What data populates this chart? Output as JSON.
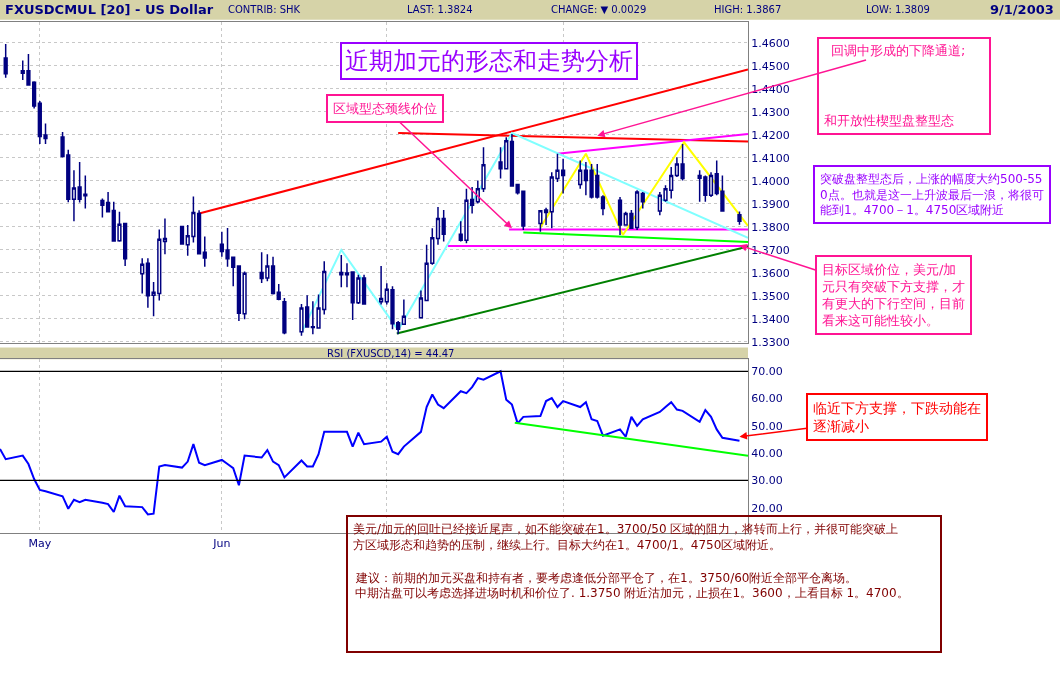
{
  "chart_data": [
    {
      "type": "candlestick",
      "title": "近期加元的形态和走势分析",
      "annotations": [
        "FXUSDCMUL [20] - US Dollar",
        "CONTRIB: SHK",
        "LAST: 1.3824",
        "CHANGE: ▼ 0.0029",
        "HIGH: 1.3867",
        "LOW: 1.3809",
        "9/1/2003",
        {
          "text": "区域型态颈线价位",
          "x": "2003-07-23",
          "y": 1.3794
        },
        {
          "text": "回调中形成的下降通道;",
          "x": "2003-08-07",
          "y": 1.4197
        },
        "和开放性楔型盘整型态",
        "突破盘整型态后，上涨的幅度大约500-550点。也就是这一上升波最后一浪，将很可能到1。4700－1。4750区域附近",
        {
          "text": "目标区域价位，美元/加元只有突破下方支撑，才有更大的下行空间，目前看来这可能性较小。",
          "x": "2003-09-01",
          "y": 1.372
        }
      ],
      "x": [
        "2003-04-25",
        "2003-04-28",
        "2003-04-29",
        "2003-04-30",
        "2003-05-01",
        "2003-05-02",
        "2003-05-05",
        "2003-05-06",
        "2003-05-07",
        "2003-05-08",
        "2003-05-09",
        "2003-05-12",
        "2003-05-13",
        "2003-05-14",
        "2003-05-15",
        "2003-05-16",
        "2003-05-19",
        "2003-05-20",
        "2003-05-21",
        "2003-05-22",
        "2003-05-23",
        "2003-05-26",
        "2003-05-27",
        "2003-05-28",
        "2003-05-29",
        "2003-05-30",
        "2003-06-02",
        "2003-06-03",
        "2003-06-04",
        "2003-06-05",
        "2003-06-06",
        "2003-06-09",
        "2003-06-10",
        "2003-06-11",
        "2003-06-12",
        "2003-06-13",
        "2003-06-16",
        "2003-06-17",
        "2003-06-18",
        "2003-06-19",
        "2003-06-20",
        "2003-06-23",
        "2003-06-24",
        "2003-06-25",
        "2003-06-26",
        "2003-06-27",
        "2003-06-30",
        "2003-07-01",
        "2003-07-02",
        "2003-07-03",
        "2003-07-04",
        "2003-07-07",
        "2003-07-08",
        "2003-07-09",
        "2003-07-10",
        "2003-07-11",
        "2003-07-14",
        "2003-07-15",
        "2003-07-16",
        "2003-07-17",
        "2003-07-18",
        "2003-07-21",
        "2003-07-22",
        "2003-07-23",
        "2003-07-24",
        "2003-07-25",
        "2003-07-28",
        "2003-07-29",
        "2003-07-30",
        "2003-07-31",
        "2003-08-01",
        "2003-08-04",
        "2003-08-05",
        "2003-08-06",
        "2003-08-07",
        "2003-08-08",
        "2003-08-11",
        "2003-08-12",
        "2003-08-13",
        "2003-08-14",
        "2003-08-15",
        "2003-08-18",
        "2003-08-19",
        "2003-08-20",
        "2003-08-21",
        "2003-08-22",
        "2003-08-25",
        "2003-08-26",
        "2003-08-27",
        "2003-08-28",
        "2003-08-29",
        "2003-09-01"
      ],
      "ohlc": [
        [
          1.4535,
          1.4596,
          1.4449,
          1.4466
        ],
        [
          1.4468,
          1.4524,
          1.4439,
          1.4479
        ],
        [
          1.4479,
          1.4552,
          1.4417,
          1.4417
        ],
        [
          1.4429,
          1.4434,
          1.4315,
          1.4326
        ],
        [
          1.4338,
          1.4348,
          1.4161,
          1.4193
        ],
        [
          1.42,
          1.425,
          1.4161,
          1.4185
        ],
        [
          1.4191,
          1.4213,
          1.4102,
          1.4106
        ],
        [
          1.4113,
          1.4136,
          1.3907,
          1.392
        ],
        [
          1.392,
          1.4046,
          1.3825,
          1.3969
        ],
        [
          1.3974,
          1.4082,
          1.3906,
          1.392
        ],
        [
          1.3942,
          1.4024,
          1.388,
          1.3935
        ],
        [
          1.3915,
          1.3923,
          1.3841,
          1.3894
        ],
        [
          1.3906,
          1.3952,
          1.3863,
          1.3866
        ],
        [
          1.3871,
          1.3909,
          1.3735,
          1.3739
        ],
        [
          1.374,
          1.3866,
          1.3735,
          1.3811
        ],
        [
          1.3815,
          1.3815,
          1.363,
          1.3661
        ],
        [
          1.3596,
          1.3664,
          1.351,
          1.3637
        ],
        [
          1.3642,
          1.3664,
          1.3448,
          1.3501
        ],
        [
          1.3503,
          1.356,
          1.3411,
          1.3516
        ],
        [
          1.351,
          1.3789,
          1.348,
          1.3746
        ],
        [
          1.3736,
          1.3837,
          1.3681,
          1.3749
        ],
        [
          1.3802,
          1.3805,
          1.3725,
          1.3726
        ],
        [
          1.3722,
          1.3808,
          1.3674,
          1.3762
        ],
        [
          1.3758,
          1.3932,
          1.3732,
          1.3863
        ],
        [
          1.3858,
          1.3872,
          1.3683,
          1.3683
        ],
        [
          1.369,
          1.3758,
          1.3627,
          1.3665
        ],
        [
          1.3725,
          1.3779,
          1.367,
          1.3693
        ],
        [
          1.37,
          1.3795,
          1.3627,
          1.3661
        ],
        [
          1.3668,
          1.3668,
          1.3542,
          1.3624
        ],
        [
          1.363,
          1.363,
          1.3391,
          1.3424
        ],
        [
          1.3422,
          1.3606,
          1.3398,
          1.3598
        ],
        [
          1.3602,
          1.369,
          1.3556,
          1.3576
        ],
        [
          1.3578,
          1.3681,
          1.3563,
          1.363
        ],
        [
          1.363,
          1.367,
          1.3506,
          1.351
        ],
        [
          1.3516,
          1.3552,
          1.3481,
          1.3485
        ],
        [
          1.3474,
          1.3491,
          1.3333,
          1.3339
        ],
        [
          1.3344,
          1.3465,
          1.3326,
          1.3447
        ],
        [
          1.3452,
          1.3503,
          1.3365,
          1.3365
        ],
        [
          1.3366,
          1.3477,
          1.3333,
          1.3362
        ],
        [
          1.336,
          1.3506,
          1.3357,
          1.3447
        ],
        [
          1.3441,
          1.365,
          1.3419,
          1.3606
        ],
        [
          1.3602,
          1.3678,
          1.3537,
          1.3592
        ],
        [
          1.3599,
          1.3642,
          1.3537,
          1.3592
        ],
        [
          1.3604,
          1.3606,
          1.3395,
          1.347
        ],
        [
          1.347,
          1.3592,
          1.3465,
          1.3578
        ],
        [
          1.3578,
          1.3592,
          1.3462,
          1.3465
        ],
        [
          1.3474,
          1.363,
          1.3462,
          1.3488
        ],
        [
          1.3474,
          1.3555,
          1.3462,
          1.3529
        ],
        [
          1.3527,
          1.3542,
          1.3355,
          1.3379
        ],
        [
          1.3383,
          1.3391,
          1.3333,
          1.3355
        ],
        [
          1.3376,
          1.3484,
          1.3376,
          1.3411
        ],
        [
          1.3405,
          1.3523,
          1.3405,
          1.3491
        ],
        [
          1.348,
          1.3722,
          1.3477,
          1.3642
        ],
        [
          1.3642,
          1.3794,
          1.3635,
          1.3753
        ],
        [
          1.375,
          1.3887,
          1.3722,
          1.3837
        ],
        [
          1.3837,
          1.3873,
          1.3736,
          1.3768
        ],
        [
          1.3768,
          1.3825,
          1.3736,
          1.3742
        ],
        [
          1.3742,
          1.3966,
          1.3729,
          1.3916
        ],
        [
          1.3919,
          1.3974,
          1.3858,
          1.3894
        ],
        [
          1.3909,
          1.4002,
          1.3902,
          1.3966
        ],
        [
          1.3966,
          1.4146,
          1.3952,
          1.407
        ],
        [
          1.4082,
          1.4146,
          1.401,
          1.4053
        ],
        [
          1.4053,
          1.419,
          1.4053,
          1.4175
        ],
        [
          1.4171,
          1.4204,
          1.3978,
          1.3978
        ],
        [
          1.3984,
          1.3984,
          1.3941,
          1.3948
        ],
        [
          1.3955,
          1.3955,
          1.3786,
          1.3804
        ],
        [
          1.3815,
          1.3873,
          1.3779,
          1.387
        ],
        [
          1.3863,
          1.3883,
          1.3808,
          1.3873
        ],
        [
          1.3866,
          1.4038,
          1.3794,
          1.4017
        ],
        [
          1.401,
          1.4118,
          1.3995,
          1.4046
        ],
        [
          1.4046,
          1.4096,
          1.3945,
          1.4024
        ],
        [
          1.3984,
          1.4089,
          1.3966,
          1.4046
        ],
        [
          1.4046,
          1.4082,
          1.3938,
          1.4002
        ],
        [
          1.4046,
          1.4074,
          1.3923,
          1.393
        ],
        [
          1.4024,
          1.4074,
          1.3923,
          1.393
        ],
        [
          1.393,
          1.3938,
          1.3851,
          1.388
        ],
        [
          1.3916,
          1.393,
          1.3765,
          1.3808
        ],
        [
          1.3808,
          1.3866,
          1.3808,
          1.3858
        ],
        [
          1.3858,
          1.3873,
          1.3794,
          1.3794
        ],
        [
          1.3797,
          1.3959,
          1.3786,
          1.3952
        ],
        [
          1.3945,
          1.3952,
          1.388,
          1.3909
        ],
        [
          1.3869,
          1.3952,
          1.3851,
          1.3938
        ],
        [
          1.3916,
          1.3981,
          1.3909,
          1.3966
        ],
        [
          1.3959,
          1.406,
          1.3923,
          1.4024
        ],
        [
          1.4024,
          1.4103,
          1.4017,
          1.4074
        ],
        [
          1.4074,
          1.4161,
          1.4002,
          1.401
        ],
        [
          1.4024,
          1.4046,
          1.3909,
          1.4012
        ],
        [
          1.4017,
          1.4024,
          1.3909,
          1.3938
        ],
        [
          1.3938,
          1.4038,
          1.393,
          1.4024
        ],
        [
          1.4031,
          1.4089,
          1.3938,
          1.3945
        ],
        [
          1.3955,
          1.4024,
          1.3866,
          1.3869
        ],
        [
          1.3853,
          1.3867,
          1.3809,
          1.3824
        ]
      ],
      "series": [
        {
          "type": "line",
          "color": "#ff0000",
          "x": [
            "2003-05-29",
            "2003-09-02T12:00"
          ],
          "values": [
            1.3858,
            1.4485
          ]
        },
        {
          "type": "line",
          "color": "#ff0000",
          "x": [
            "2003-07-03",
            "2003-09-02T12:00"
          ],
          "values": [
            1.4208,
            1.4171
          ]
        },
        {
          "type": "line",
          "color": "#ff00ff",
          "x": [
            "2003-07-31",
            "2003-09-02T12:00"
          ],
          "values": [
            1.4118,
            1.4204
          ]
        },
        {
          "type": "line",
          "color": "#ff00ff",
          "x": [
            "2003-07-22T12:00",
            "2003-09-02T12:00"
          ],
          "values": [
            1.3789,
            1.3789
          ]
        },
        {
          "type": "line",
          "color": "#ff00ff",
          "x": [
            "2003-07-11T18:00",
            "2003-09-02T12:00"
          ],
          "values": [
            1.3717,
            1.3717
          ]
        },
        {
          "type": "line",
          "color": "#00ff00",
          "x": [
            "2003-07-25",
            "2003-09-02T12:00"
          ],
          "values": [
            1.3776,
            1.3734
          ]
        },
        {
          "type": "line",
          "color": "#008000",
          "x": [
            "2003-07-02T18:00",
            "2003-09-02T12:00"
          ],
          "values": [
            1.3336,
            1.3715
          ]
        },
        {
          "type": "line",
          "color": "#80ffff",
          "x": [
            "2003-06-16",
            "2003-06-23",
            "2003-07-03",
            "2003-07-23",
            "2003-09-02T12:00"
          ],
          "values": [
            1.334,
            1.37,
            1.3351,
            1.4208,
            1.3752
          ]
        },
        {
          "type": "line",
          "color": "#ffff00",
          "x": [
            "2003-07-28",
            "2003-08-05",
            "2003-08-11T12:00",
            "2003-08-22T06:00",
            "2003-09-02T12:00"
          ],
          "values": [
            1.3797,
            1.4118,
            1.3765,
            1.4168,
            1.3804
          ]
        }
      ],
      "xlim": [
        "2003-04-24",
        "2003-09-02T12:00"
      ],
      "xticks": [
        {
          "value": "2003-05-01",
          "label": null
        },
        {
          "value": "2003-06-02",
          "label": null
        },
        {
          "value": "2003-07-01",
          "label": null
        },
        {
          "value": "2003-08-01",
          "label": null
        }
      ],
      "ylim": [
        1.3293,
        1.4692
      ],
      "yticks": [
        {
          "value": 1.33,
          "label": "1.3300"
        },
        {
          "value": 1.34,
          "label": "1.3400"
        },
        {
          "value": 1.35,
          "label": "1.3500"
        },
        {
          "value": 1.36,
          "label": "1.3600"
        },
        {
          "value": 1.37,
          "label": "1.3700"
        },
        {
          "value": 1.38,
          "label": "1.3800"
        },
        {
          "value": 1.39,
          "label": "1.3900"
        },
        {
          "value": 1.4,
          "label": "1.4000"
        },
        {
          "value": 1.41,
          "label": "1.4100"
        },
        {
          "value": 1.42,
          "label": "1.4200"
        },
        {
          "value": 1.43,
          "label": "1.4300"
        },
        {
          "value": 1.44,
          "label": "1.4400"
        },
        {
          "value": 1.45,
          "label": "1.4500"
        },
        {
          "value": 1.46,
          "label": "1.4600"
        }
      ],
      "grid": true,
      "tick_labels": "y"
    },
    {
      "type": "line",
      "title": "RSI (FXUSCD,14) = 44.47",
      "annotations": [
        {
          "text": "临近下方支撑，下跌动能在逐渐减小",
          "x": "2003-09-01",
          "y": 46
        },
        "美元/加元的回吐已经接近尾声，如不能突破在1。3700/50 区域的阻力，将转而上行，并很可能突破上方区域形态和趋势的压制，继续上行。目标大约在1。4700/1。4750区域附近。",
        "建议：前期的加元买盘和持有者，要考虑逢低分部平仓了，在1。3750/60附近全部平仓离场。",
        "中期沽盘可以考虑选择进场时机和价位了. 1.3750 附近沽加元，止损在1。3600，上看目标 1。4700。"
      ],
      "x": [
        "2003-04-24",
        "2003-04-25",
        "2003-04-28",
        "2003-04-29",
        "2003-04-30",
        "2003-05-01",
        "2003-05-02",
        "2003-05-05",
        "2003-05-06",
        "2003-05-07",
        "2003-05-08",
        "2003-05-09",
        "2003-05-12",
        "2003-05-13",
        "2003-05-14",
        "2003-05-15",
        "2003-05-16",
        "2003-05-19",
        "2003-05-20",
        "2003-05-21",
        "2003-05-22",
        "2003-05-23",
        "2003-05-26",
        "2003-05-27",
        "2003-05-28",
        "2003-05-29",
        "2003-05-30",
        "2003-06-02",
        "2003-06-03",
        "2003-06-04",
        "2003-06-05",
        "2003-06-06",
        "2003-06-09",
        "2003-06-10",
        "2003-06-11",
        "2003-06-12",
        "2003-06-13",
        "2003-06-16",
        "2003-06-17",
        "2003-06-18",
        "2003-06-19",
        "2003-06-20",
        "2003-06-23",
        "2003-06-24",
        "2003-06-25",
        "2003-06-26",
        "2003-06-27",
        "2003-06-30",
        "2003-07-01",
        "2003-07-02",
        "2003-07-03",
        "2003-07-04",
        "2003-07-07",
        "2003-07-08",
        "2003-07-09",
        "2003-07-10",
        "2003-07-11",
        "2003-07-14",
        "2003-07-15",
        "2003-07-16",
        "2003-07-17",
        "2003-07-18",
        "2003-07-21",
        "2003-07-22",
        "2003-07-23",
        "2003-07-24",
        "2003-07-25",
        "2003-07-28",
        "2003-07-29",
        "2003-07-30",
        "2003-07-31",
        "2003-08-01",
        "2003-08-04",
        "2003-08-05",
        "2003-08-06",
        "2003-08-07",
        "2003-08-08",
        "2003-08-11",
        "2003-08-12",
        "2003-08-13",
        "2003-08-14",
        "2003-08-15",
        "2003-08-18",
        "2003-08-19",
        "2003-08-20",
        "2003-08-21",
        "2003-08-22",
        "2003-08-25",
        "2003-08-26",
        "2003-08-27",
        "2003-08-28",
        "2003-08-29",
        "2003-09-01"
      ],
      "series": [
        {
          "color": "#0000ff",
          "values": [
            41.5,
            37.8,
            39.1,
            36,
            30.5,
            26.5,
            26,
            24.2,
            19.6,
            22.9,
            22,
            22.9,
            21.8,
            21.3,
            18.4,
            24.4,
            20.5,
            20.2,
            17.5,
            17.8,
            35.1,
            35.6,
            34.7,
            36.9,
            43.3,
            36.5,
            35.6,
            37.5,
            36,
            34.5,
            28.2,
            39.1,
            38.4,
            41.1,
            36.9,
            35.6,
            31.1,
            37.3,
            35.1,
            35.1,
            39.6,
            47.8,
            47.8,
            47.8,
            42.4,
            47.5,
            43.3,
            44.2,
            46,
            40.5,
            39.6,
            42.4,
            47.8,
            56.9,
            61.5,
            57.8,
            56.5,
            62.7,
            62,
            64.2,
            67.5,
            66.9,
            70,
            59.6,
            57.8,
            50.9,
            53.3,
            53.6,
            59.1,
            60.2,
            56.9,
            59.1,
            56.9,
            58.7,
            52.4,
            51.8,
            46.4,
            48.7,
            46,
            53.3,
            50,
            52.4,
            55.1,
            56.9,
            58.7,
            56,
            55.5,
            51.5,
            55.8,
            53.3,
            48.7,
            45.6,
            44.5
          ]
        },
        {
          "color": "#00ff00",
          "x": [
            "2003-07-23T12:00",
            "2003-09-02T12:00"
          ],
          "values": [
            51.1,
            39.0
          ]
        }
      ],
      "ref_lines": [
        {
          "axis": "y",
          "value": 70,
          "color": "#000000"
        },
        {
          "axis": "y",
          "value": 30,
          "color": "#000000"
        }
      ],
      "xlim": [
        "2003-04-24",
        "2003-09-02T12:00"
      ],
      "xticks": [
        {
          "value": "2003-05-01",
          "label": "May"
        },
        {
          "value": "2003-06-02",
          "label": "Jun"
        },
        {
          "value": "2003-07-01",
          "label": null
        },
        {
          "value": "2003-08-01",
          "label": null
        }
      ],
      "ylim": [
        10.7,
        74.4
      ],
      "yticks": [
        {
          "value": 20,
          "label": "20.00"
        },
        {
          "value": 30,
          "label": "30.00"
        },
        {
          "value": 40,
          "label": "40.00"
        },
        {
          "value": 50,
          "label": "50.00"
        },
        {
          "value": 60,
          "label": "60.00"
        },
        {
          "value": 70,
          "label": "70.00"
        }
      ],
      "grid": "x"
    }
  ]
}
